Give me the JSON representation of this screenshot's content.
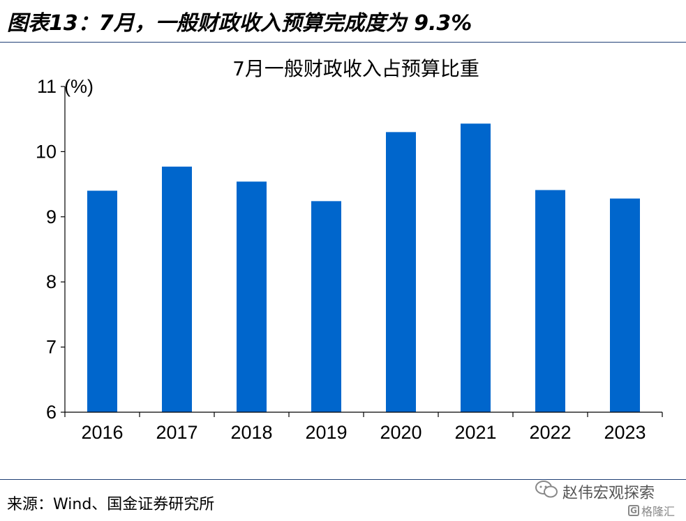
{
  "header": {
    "figure_title": "图表13：7月，一般财政收入预算完成度为 9.3%"
  },
  "footer": {
    "source": "来源：Wind、国金证券研究所",
    "watermark": "赵伟宏观探索",
    "watermark2": "格隆汇",
    "watermark2_icon": "G"
  },
  "chart_data": {
    "type": "bar",
    "title": "7月一般财政收入占预算比重",
    "ylabel": "(%)",
    "xlabel": "",
    "categories": [
      "2016",
      "2017",
      "2018",
      "2019",
      "2020",
      "2021",
      "2022",
      "2023"
    ],
    "values": [
      9.4,
      9.77,
      9.54,
      9.24,
      10.3,
      10.43,
      9.41,
      9.28
    ],
    "ylim": [
      6,
      11
    ],
    "yticks": [
      "6",
      "7",
      "8",
      "9",
      "10",
      "11"
    ],
    "bar_color": "#0066cc",
    "grid": false,
    "legend": "none"
  }
}
